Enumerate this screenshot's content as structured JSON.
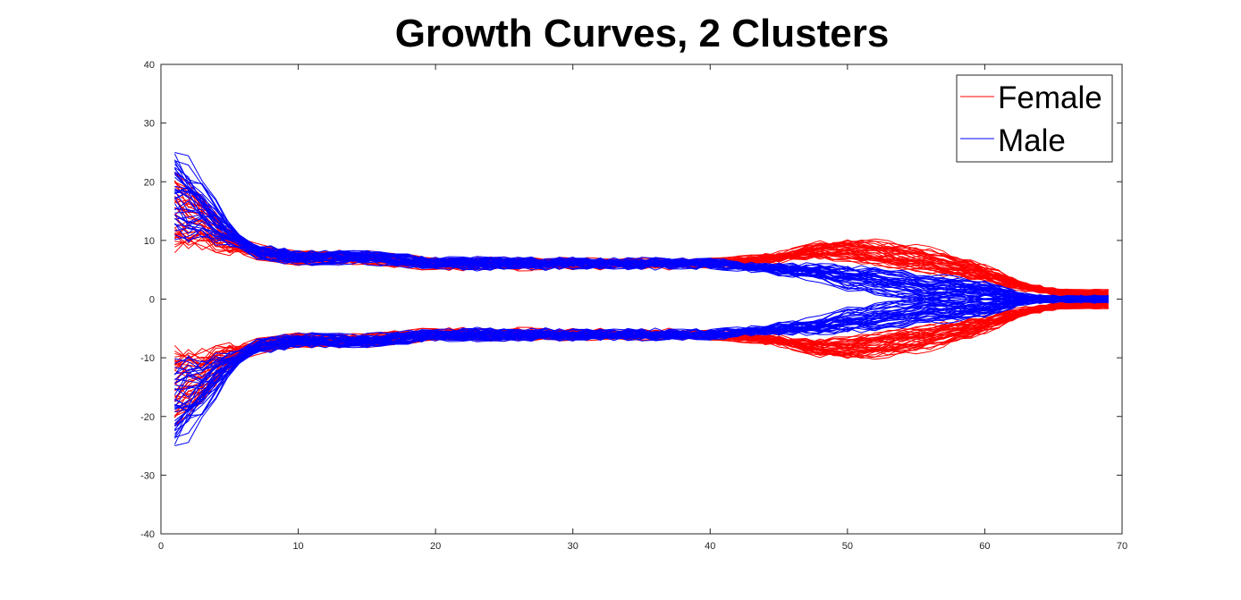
{
  "chart_data": {
    "type": "line",
    "title": "Growth Curves, 2 Clusters",
    "xlabel": "",
    "ylabel": "",
    "xlim": [
      0,
      70
    ],
    "ylim": [
      -40,
      40
    ],
    "xticks": [
      0,
      10,
      20,
      30,
      40,
      50,
      60,
      70
    ],
    "yticks": [
      -40,
      -30,
      -20,
      -10,
      0,
      10,
      20,
      30,
      40
    ],
    "grid": false,
    "legend": {
      "placement": "top-right",
      "entries": [
        {
          "name": "Female",
          "color": "#ff0000"
        },
        {
          "name": "Male",
          "color": "#0000ff"
        }
      ]
    },
    "series": [
      {
        "name": "Female",
        "color": "#ff0000",
        "description": "representative mean upper-cluster curve",
        "x": [
          1,
          3,
          5,
          7,
          10,
          15,
          20,
          25,
          30,
          35,
          40,
          45,
          48,
          50,
          53,
          56,
          58,
          60,
          63,
          66,
          69
        ],
        "y": [
          16,
          14,
          10,
          8,
          7,
          7,
          6,
          6,
          6,
          6,
          6,
          7,
          8,
          8,
          7,
          6,
          5,
          4,
          2,
          1,
          1
        ]
      },
      {
        "name": "Male",
        "color": "#0000ff",
        "description": "representative mean upper-cluster curve",
        "x": [
          1,
          3,
          5,
          7,
          10,
          15,
          20,
          25,
          30,
          35,
          40,
          45,
          48,
          50,
          53,
          56,
          58,
          60,
          63,
          66,
          69
        ],
        "y": [
          18,
          15,
          11,
          8,
          7,
          7,
          6,
          6,
          6,
          6,
          6,
          5,
          4,
          3,
          2,
          1,
          1,
          1,
          0,
          0,
          0
        ]
      }
    ]
  }
}
